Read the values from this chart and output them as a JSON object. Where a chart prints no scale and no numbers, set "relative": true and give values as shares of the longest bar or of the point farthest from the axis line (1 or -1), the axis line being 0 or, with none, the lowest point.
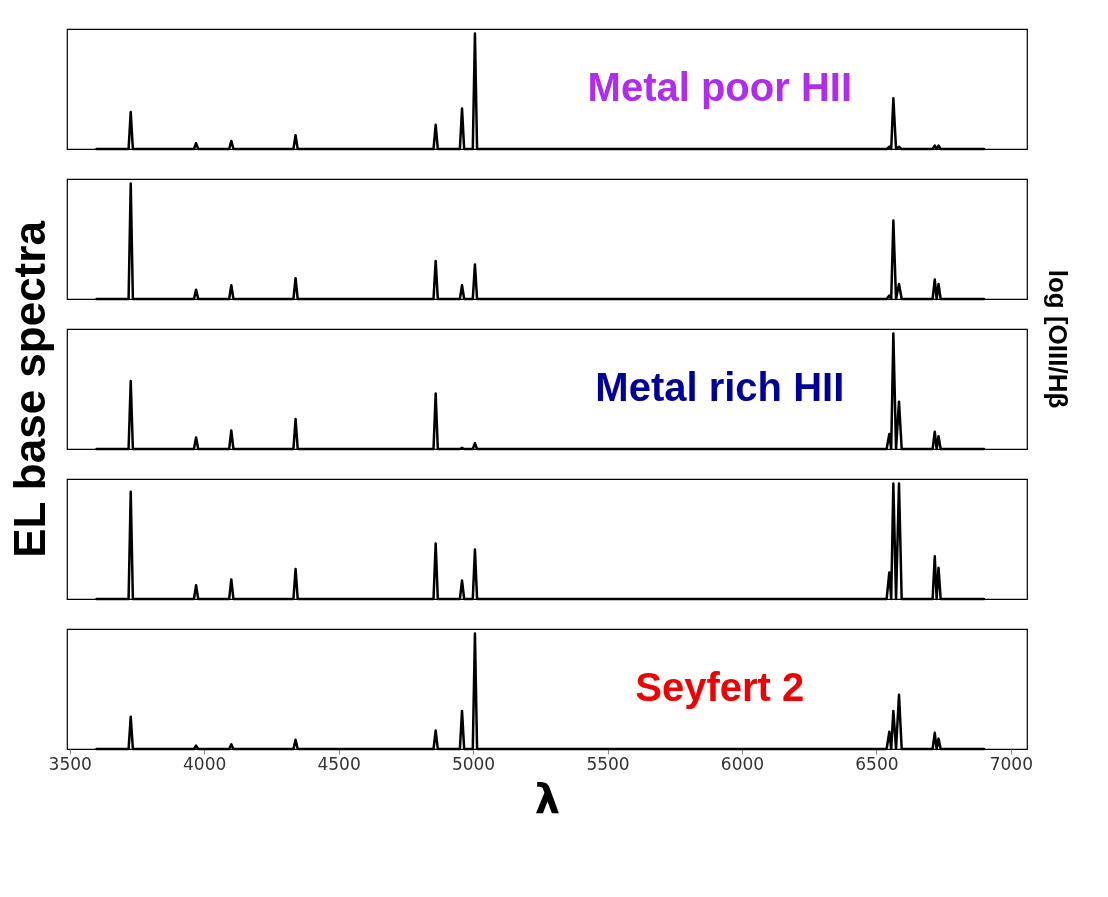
{
  "chart_data": [
    {
      "type": "line",
      "relative": true,
      "annotations": [
        "Metal poor HII"
      ],
      "x": [
        3600,
        3719,
        3727,
        3735,
        3962,
        3970,
        3978,
        4093,
        4101,
        4109,
        4332,
        4340,
        4348,
        4853,
        4861,
        4869,
        4951,
        4959,
        4967,
        4999,
        5007,
        5015,
        6538,
        6548,
        6555,
        6563,
        6573,
        6584,
        6594,
        6709,
        6717,
        6724,
        6731,
        6739,
        6900
      ],
      "xlim": [
        3490,
        7060
      ],
      "tick_labels": false,
      "grid": false,
      "legend": false,
      "series": [
        {
          "color": "#000000",
          "values": [
            0,
            0,
            0.32,
            0,
            0,
            0.05,
            0,
            0,
            0.07,
            0,
            0,
            0.12,
            0,
            0,
            0.21,
            0,
            0,
            0.35,
            0,
            0,
            1,
            0,
            0,
            0.02,
            0,
            0.44,
            0,
            0.02,
            0,
            0,
            0.03,
            0,
            0.03,
            0,
            0
          ]
        }
      ]
    },
    {
      "type": "line",
      "relative": true,
      "annotations": [
        "log [OIII/Hβ"
      ],
      "x": [
        3600,
        3719,
        3727,
        3735,
        3962,
        3970,
        3978,
        4093,
        4101,
        4109,
        4332,
        4340,
        4348,
        4853,
        4861,
        4869,
        4951,
        4959,
        4967,
        4999,
        5007,
        5015,
        6538,
        6548,
        6555,
        6563,
        6573,
        6584,
        6594,
        6709,
        6717,
        6724,
        6731,
        6739,
        6900
      ],
      "xlim": [
        3490,
        7060
      ],
      "tick_labels": false,
      "grid": false,
      "legend": false,
      "series": [
        {
          "color": "#000000",
          "values": [
            0,
            0,
            1,
            0,
            0,
            0.08,
            0,
            0,
            0.12,
            0,
            0,
            0.18,
            0,
            0,
            0.33,
            0,
            0,
            0.12,
            0,
            0,
            0.3,
            0,
            0,
            0.03,
            0,
            0.68,
            0,
            0.13,
            0,
            0,
            0.17,
            0,
            0.13,
            0,
            0
          ]
        }
      ]
    },
    {
      "type": "line",
      "relative": true,
      "ylabel": "EL base spectra",
      "annotations": [
        "Metal rich HII"
      ],
      "x": [
        3600,
        3719,
        3727,
        3735,
        3962,
        3970,
        3978,
        4093,
        4101,
        4109,
        4332,
        4340,
        4348,
        4853,
        4861,
        4869,
        4951,
        4959,
        4967,
        4999,
        5007,
        5015,
        6538,
        6548,
        6555,
        6563,
        6573,
        6584,
        6594,
        6709,
        6717,
        6724,
        6731,
        6739,
        6900
      ],
      "xlim": [
        3490,
        7060
      ],
      "tick_labels": false,
      "grid": false,
      "legend": false,
      "series": [
        {
          "color": "#000000",
          "values": [
            0,
            0,
            0.59,
            0,
            0,
            0.1,
            0,
            0,
            0.16,
            0,
            0,
            0.26,
            0,
            0,
            0.48,
            0,
            0,
            0.01,
            0,
            0,
            0.05,
            0,
            0,
            0.13,
            0,
            1,
            0,
            0.41,
            0,
            0,
            0.15,
            0,
            0.11,
            0,
            0
          ]
        }
      ]
    },
    {
      "type": "line",
      "relative": true,
      "x": [
        3600,
        3719,
        3727,
        3735,
        3962,
        3970,
        3978,
        4093,
        4101,
        4109,
        4332,
        4340,
        4348,
        4853,
        4861,
        4869,
        4951,
        4959,
        4967,
        4999,
        5007,
        5015,
        6538,
        6548,
        6555,
        6563,
        6573,
        6584,
        6594,
        6709,
        6717,
        6724,
        6731,
        6739,
        6900
      ],
      "xlim": [
        3490,
        7060
      ],
      "tick_labels": false,
      "grid": false,
      "legend": false,
      "series": [
        {
          "color": "#000000",
          "values": [
            0,
            0,
            0.93,
            0,
            0,
            0.12,
            0,
            0,
            0.17,
            0,
            0,
            0.26,
            0,
            0,
            0.48,
            0,
            0,
            0.16,
            0,
            0,
            0.43,
            0,
            0,
            0.23,
            0,
            1,
            0,
            1,
            0,
            0,
            0.37,
            0,
            0.27,
            0,
            0
          ]
        }
      ]
    },
    {
      "type": "line",
      "relative": true,
      "xlabel": "λ",
      "annotations": [
        "Seyfert 2"
      ],
      "x": [
        3600,
        3719,
        3727,
        3735,
        3962,
        3970,
        3978,
        4093,
        4101,
        4109,
        4332,
        4340,
        4348,
        4853,
        4861,
        4869,
        4951,
        4959,
        4967,
        4999,
        5007,
        5015,
        6538,
        6548,
        6555,
        6563,
        6573,
        6584,
        6594,
        6709,
        6717,
        6724,
        6731,
        6739,
        6900
      ],
      "xlim": [
        3490,
        7060
      ],
      "xticks": [
        3500,
        4000,
        4500,
        5000,
        5500,
        6000,
        6500,
        7000
      ],
      "tick_labels": "x",
      "grid": false,
      "legend": false,
      "series": [
        {
          "color": "#000000",
          "values": [
            0,
            0,
            0.28,
            0,
            0,
            0.03,
            0,
            0,
            0.04,
            0,
            0,
            0.08,
            0,
            0,
            0.16,
            0,
            0,
            0.33,
            0,
            0,
            1,
            0,
            0,
            0.15,
            0,
            0.33,
            0,
            0.47,
            0,
            0,
            0.14,
            0,
            0.09,
            0,
            0
          ]
        }
      ]
    }
  ]
}
